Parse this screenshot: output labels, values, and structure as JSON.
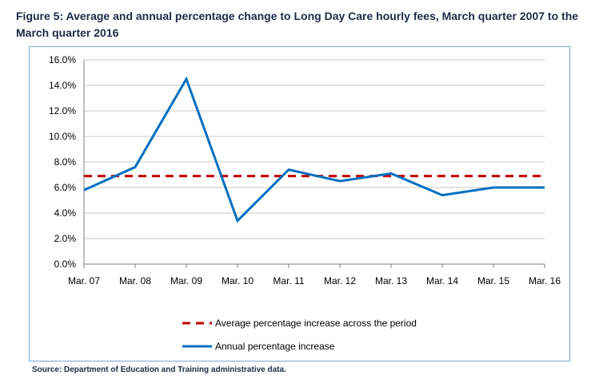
{
  "figure": {
    "title": "Figure 5:  Average and annual percentage change to Long Day Care hourly fees, March quarter 2007 to the March quarter 2016",
    "source": "Source: Department of Education and Training administrative data."
  },
  "chart_data": {
    "type": "line",
    "categories": [
      "Mar. 07",
      "Mar. 08",
      "Mar. 09",
      "Mar. 10",
      "Mar. 11",
      "Mar. 12",
      "Mar. 13",
      "Mar. 14",
      "Mar. 15",
      "Mar. 16"
    ],
    "series": [
      {
        "name": "Average percentage increase across the period",
        "values": [
          6.9,
          6.9,
          6.9,
          6.9,
          6.9,
          6.9,
          6.9,
          6.9,
          6.9,
          6.9
        ],
        "color": "#c00000",
        "style": "dashed"
      },
      {
        "name": "Annual percentage increase",
        "values": [
          5.8,
          7.6,
          14.5,
          3.4,
          7.4,
          6.5,
          7.1,
          5.4,
          6.0,
          6.0
        ],
        "color": "#0070c0",
        "style": "solid"
      }
    ],
    "yticks": [
      "0.0%",
      "2.0%",
      "4.0%",
      "6.0%",
      "8.0%",
      "10.0%",
      "12.0%",
      "14.0%",
      "16.0%"
    ],
    "ylim": [
      0,
      16
    ],
    "grid": true,
    "legend_position": "bottom"
  }
}
